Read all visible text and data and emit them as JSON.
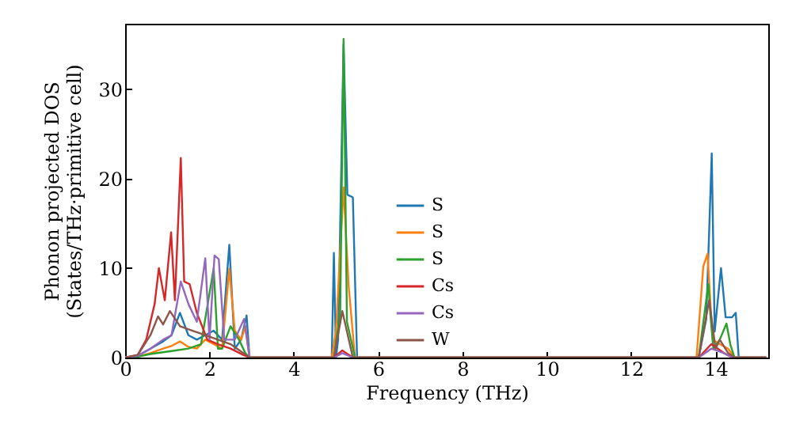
{
  "chart_data": {
    "type": "line",
    "xlabel": "Frequency (THz)",
    "ylabel": "Phonon projected DOS\n(States/THz·primitive cell)",
    "xlim": [
      0,
      15.25
    ],
    "xticks": [
      0,
      2,
      4,
      6,
      8,
      10,
      12,
      14
    ],
    "ylim": [
      0,
      37.3
    ],
    "yticks": [
      0,
      10,
      20,
      30
    ],
    "grid": false,
    "legend": "center",
    "line_style": "solid",
    "series": [
      {
        "name": "S",
        "color": "#1f77b4",
        "x": [
          0,
          0.3,
          0.6,
          0.9,
          1.1,
          1.3,
          1.5,
          1.7,
          1.9,
          2.1,
          2.3,
          2.47,
          2.6,
          2.75,
          2.88,
          2.95,
          4.9,
          4.95,
          5.0,
          5.05,
          5.18,
          5.27,
          5.4,
          5.5,
          13.6,
          13.78,
          13.91,
          13.98,
          14.13,
          14.24,
          14.39,
          14.48,
          14.55,
          15.2
        ],
        "values": [
          0,
          0.2,
          1,
          1.8,
          2.5,
          5,
          2.5,
          2,
          2.5,
          3,
          2,
          12.6,
          1,
          2,
          4.7,
          0,
          0,
          11.7,
          0,
          2,
          35,
          18.2,
          17.9,
          0,
          0,
          4.3,
          22.8,
          2.9,
          10,
          4.5,
          4.5,
          5,
          0,
          0
        ]
      },
      {
        "name": "S",
        "color": "#ff7f0e",
        "x": [
          0,
          0.3,
          0.6,
          0.9,
          1.1,
          1.3,
          1.5,
          1.7,
          1.9,
          2.1,
          2.3,
          2.47,
          2.6,
          2.75,
          2.85,
          2.95,
          4.9,
          5.0,
          5.18,
          5.3,
          5.45,
          13.55,
          13.71,
          13.81,
          13.93,
          14.1,
          14.3,
          14.45,
          15.2
        ],
        "values": [
          0,
          0.1,
          0.5,
          1,
          1.3,
          1.8,
          1.2,
          1,
          2,
          1.5,
          1,
          9.9,
          3,
          2,
          3.5,
          0,
          0,
          3,
          19,
          8,
          0,
          0,
          10.2,
          11.6,
          2,
          1.5,
          1,
          0,
          0
        ]
      },
      {
        "name": "S",
        "color": "#2ca02c",
        "x": [
          0,
          0.3,
          0.6,
          0.9,
          1.2,
          1.5,
          1.8,
          2.1,
          2.2,
          2.3,
          2.5,
          2.7,
          2.85,
          2.95,
          4.95,
          5.1,
          5.18,
          5.26,
          5.45,
          13.6,
          13.83,
          13.88,
          13.95,
          14.1,
          14.26,
          14.35,
          14.45,
          15.2
        ],
        "values": [
          0,
          0.1,
          0.4,
          0.6,
          0.8,
          1,
          1.5,
          10,
          1,
          1,
          3.5,
          2,
          0.5,
          0,
          0,
          5,
          35.6,
          4,
          0,
          0,
          8.2,
          4.7,
          1,
          2,
          3.8,
          1.5,
          0,
          0
        ]
      },
      {
        "name": "Cs",
        "color": "#d62728",
        "x": [
          0,
          0.3,
          0.5,
          0.7,
          0.8,
          0.94,
          1.09,
          1.18,
          1.32,
          1.4,
          1.53,
          1.7,
          1.95,
          2.2,
          2.5,
          2.8,
          2.95,
          4.95,
          5.15,
          5.4,
          13.6,
          13.9,
          14.2,
          14.4,
          15.2
        ],
        "values": [
          0,
          0.3,
          2,
          6,
          10,
          6.4,
          14,
          6.4,
          22.3,
          8.5,
          8.2,
          5,
          2,
          1.5,
          1,
          0.3,
          0,
          0,
          0.8,
          0,
          0,
          1.5,
          0.5,
          0,
          0
        ]
      },
      {
        "name": "Cs",
        "color": "#9467bd",
        "x": [
          0,
          0.3,
          0.6,
          0.9,
          1.1,
          1.32,
          1.5,
          1.7,
          1.9,
          2.0,
          2.12,
          2.22,
          2.35,
          2.6,
          2.82,
          2.95,
          4.95,
          5.15,
          5.4,
          13.6,
          13.9,
          14.2,
          14.4,
          15.2
        ],
        "values": [
          0,
          0.2,
          1,
          2,
          2.5,
          8.5,
          6,
          4,
          11.1,
          2,
          11.4,
          11,
          2,
          2,
          4.3,
          0,
          0,
          0.5,
          0,
          0,
          1,
          0.5,
          0,
          0
        ]
      },
      {
        "name": "W",
        "color": "#8c564b",
        "x": [
          0,
          0.3,
          0.6,
          0.78,
          0.9,
          1.06,
          1.3,
          1.6,
          1.9,
          2.2,
          2.5,
          2.8,
          2.95,
          4.95,
          5.15,
          5.4,
          13.6,
          13.85,
          14.0,
          14.1,
          14.3,
          14.45,
          15.2
        ],
        "values": [
          0,
          0.3,
          2.5,
          4.6,
          3.7,
          5.2,
          3.5,
          3,
          2.5,
          2,
          1.5,
          0.5,
          0,
          0,
          5.2,
          0,
          0,
          6.4,
          1,
          2,
          0.5,
          0,
          0
        ]
      }
    ]
  }
}
